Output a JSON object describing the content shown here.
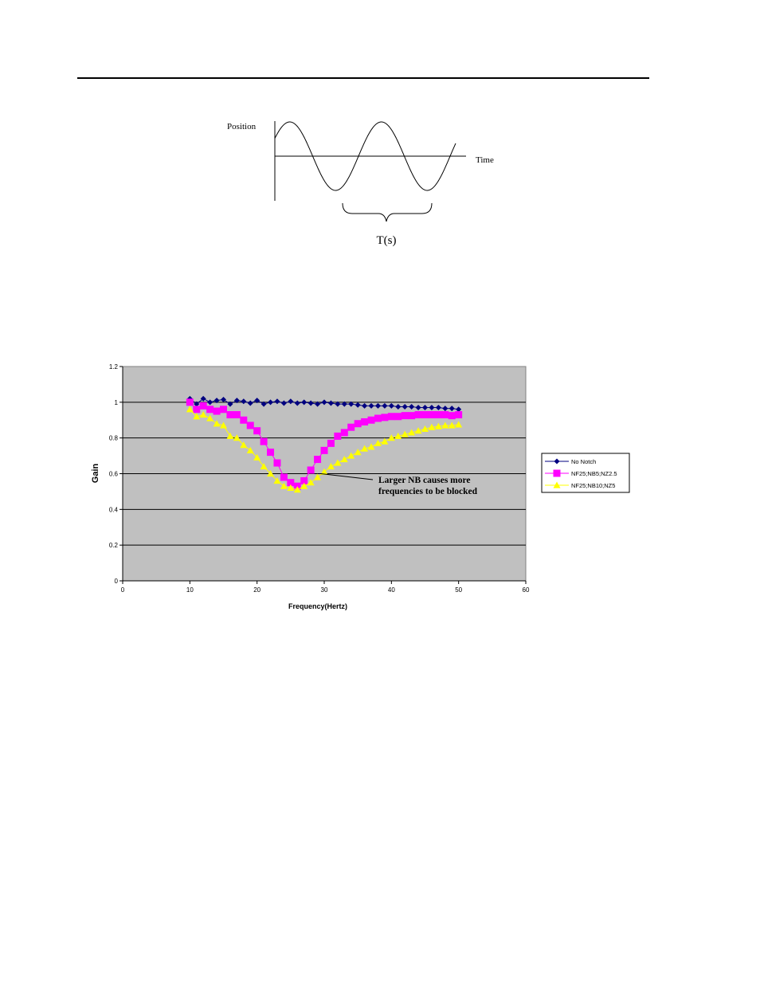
{
  "sine_figure": {
    "ylabel": "Position",
    "xlabel": "Time",
    "period_label": "T(s)"
  },
  "chart_data": {
    "type": "line",
    "xlabel": "Frequency(Hertz)",
    "ylabel": "Gain",
    "xlim": [
      0,
      60
    ],
    "ylim": [
      0,
      1.2
    ],
    "xticks": [
      0,
      10,
      20,
      30,
      40,
      50,
      60
    ],
    "yticks": [
      0,
      0.2,
      0.4,
      0.6,
      0.8,
      1,
      1.2
    ],
    "grid": "horizontal",
    "legend_position": "right",
    "annotation": {
      "lines": [
        "Larger NB causes more",
        "frequencies to be blocked"
      ],
      "points_to": [
        29.5,
        0.6
      ]
    },
    "x": [
      10,
      11,
      12,
      13,
      14,
      15,
      16,
      17,
      18,
      19,
      20,
      21,
      22,
      23,
      24,
      25,
      26,
      27,
      28,
      29,
      30,
      31,
      32,
      33,
      34,
      35,
      36,
      37,
      38,
      39,
      40,
      41,
      42,
      43,
      44,
      45,
      46,
      47,
      48,
      49,
      50
    ],
    "series": [
      {
        "name": "No Notch",
        "color": "#000080",
        "marker": "diamond",
        "values": [
          1.02,
          0.99,
          1.02,
          1.0,
          1.01,
          1.015,
          0.99,
          1.01,
          1.005,
          0.995,
          1.01,
          0.99,
          1.0,
          1.005,
          0.995,
          1.005,
          0.995,
          1.0,
          0.995,
          0.99,
          1.0,
          0.995,
          0.99,
          0.99,
          0.99,
          0.985,
          0.98,
          0.98,
          0.98,
          0.98,
          0.98,
          0.975,
          0.975,
          0.975,
          0.97,
          0.97,
          0.97,
          0.97,
          0.965,
          0.965,
          0.96
        ]
      },
      {
        "name": "NF25;NB5;NZ2.5",
        "color": "#ff00ff",
        "marker": "square",
        "values": [
          1.0,
          0.96,
          0.98,
          0.96,
          0.95,
          0.96,
          0.93,
          0.93,
          0.9,
          0.87,
          0.84,
          0.78,
          0.72,
          0.66,
          0.58,
          0.55,
          0.53,
          0.56,
          0.62,
          0.68,
          0.73,
          0.77,
          0.81,
          0.83,
          0.86,
          0.88,
          0.89,
          0.9,
          0.91,
          0.915,
          0.92,
          0.92,
          0.925,
          0.925,
          0.93,
          0.93,
          0.93,
          0.93,
          0.93,
          0.925,
          0.93
        ]
      },
      {
        "name": "NF25;NB10;NZ5",
        "color": "#ffff00",
        "marker": "triangle",
        "values": [
          0.96,
          0.92,
          0.93,
          0.91,
          0.88,
          0.87,
          0.81,
          0.8,
          0.76,
          0.73,
          0.69,
          0.64,
          0.6,
          0.56,
          0.53,
          0.52,
          0.51,
          0.53,
          0.55,
          0.58,
          0.61,
          0.64,
          0.66,
          0.68,
          0.7,
          0.72,
          0.74,
          0.75,
          0.77,
          0.78,
          0.8,
          0.81,
          0.82,
          0.83,
          0.84,
          0.85,
          0.86,
          0.865,
          0.87,
          0.87,
          0.875
        ]
      }
    ]
  }
}
